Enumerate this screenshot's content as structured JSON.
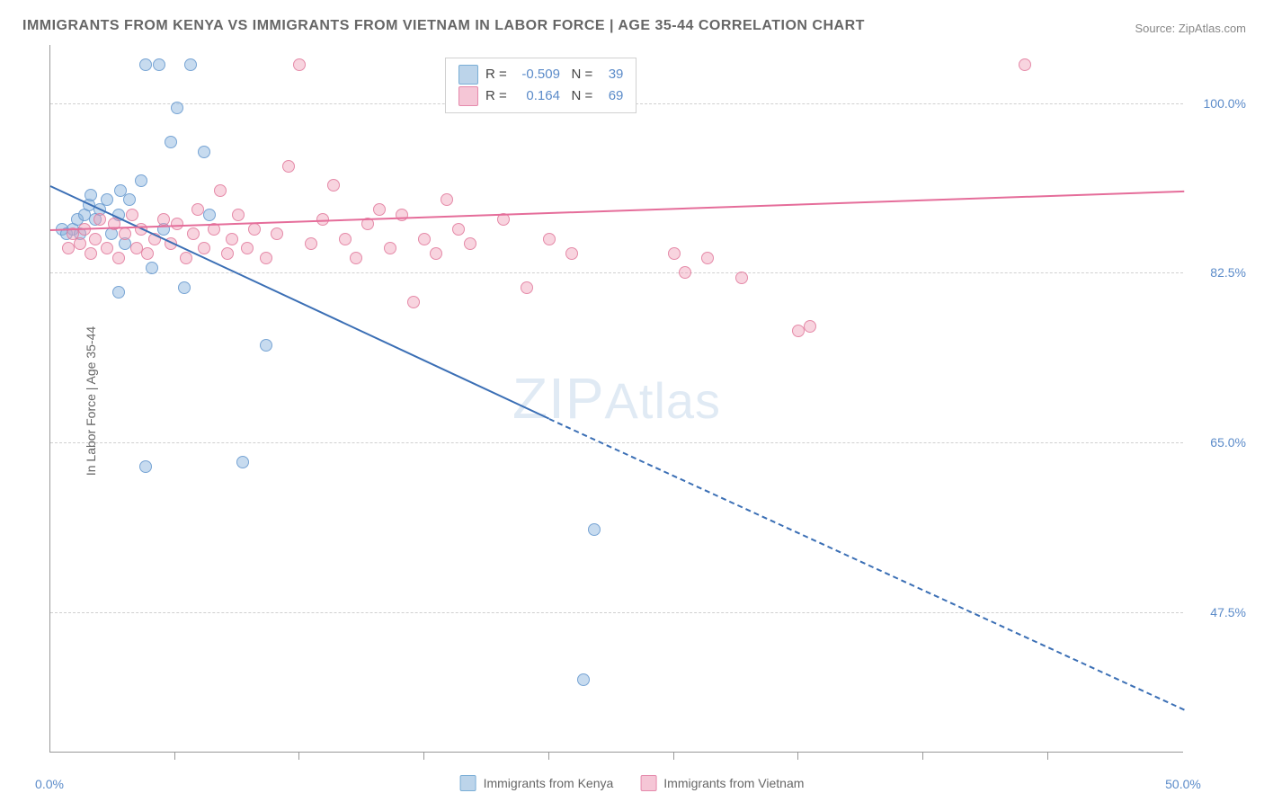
{
  "title": "IMMIGRANTS FROM KENYA VS IMMIGRANTS FROM VIETNAM IN LABOR FORCE | AGE 35-44 CORRELATION CHART",
  "source": "Source: ZipAtlas.com",
  "ylabel": "In Labor Force | Age 35-44",
  "watermark": "ZIPAtlas",
  "chart": {
    "type": "scatter",
    "xlim": [
      0,
      50
    ],
    "ylim": [
      33,
      106
    ],
    "xtick_labels": [
      "0.0%",
      "50.0%"
    ],
    "xtick_positions": [
      0,
      50
    ],
    "xtick_minor": [
      5.5,
      11,
      16.5,
      22,
      27.5,
      33,
      38.5,
      44
    ],
    "ytick_labels": [
      "47.5%",
      "65.0%",
      "82.5%",
      "100.0%"
    ],
    "ytick_positions": [
      47.5,
      65.0,
      82.5,
      100.0
    ],
    "grid_color": "#d0d0d0",
    "background_color": "#ffffff",
    "marker_size": 14,
    "series": [
      {
        "name": "Immigrants from Kenya",
        "short": "kenya",
        "point_fill": "rgba(130,175,220,0.45)",
        "point_stroke": "rgba(100,150,205,0.8)",
        "line_color": "#3b6fb5",
        "r": "-0.509",
        "n": "39",
        "trend": {
          "x1": 0,
          "y1": 91.5,
          "x2": 22,
          "y2": 67.5,
          "x2_dash": 50,
          "y2_dash": 37.5
        },
        "points": [
          [
            0.5,
            87
          ],
          [
            0.7,
            86.5
          ],
          [
            1,
            87
          ],
          [
            1.2,
            88
          ],
          [
            1.3,
            86.5
          ],
          [
            1.5,
            88.5
          ],
          [
            1.7,
            89.5
          ],
          [
            1.8,
            90.5
          ],
          [
            2,
            88
          ],
          [
            2.2,
            89
          ],
          [
            2.5,
            90
          ],
          [
            2.7,
            86.5
          ],
          [
            3,
            88.5
          ],
          [
            3.1,
            91
          ],
          [
            3.3,
            85.5
          ],
          [
            3.5,
            90
          ],
          [
            4,
            92
          ],
          [
            4.2,
            104
          ],
          [
            4.5,
            83
          ],
          [
            4.8,
            104
          ],
          [
            5,
            87
          ],
          [
            5.3,
            96
          ],
          [
            5.6,
            99.5
          ],
          [
            5.9,
            81
          ],
          [
            6.2,
            104
          ],
          [
            6.8,
            95
          ],
          [
            7,
            88.5
          ],
          [
            3,
            80.5
          ],
          [
            4.2,
            62.5
          ],
          [
            8.5,
            63
          ],
          [
            9.5,
            75
          ],
          [
            22,
            104
          ],
          [
            24,
            56
          ],
          [
            23.5,
            40.5
          ]
        ]
      },
      {
        "name": "Immigrants from Vietnam",
        "short": "vietnam",
        "point_fill": "rgba(240,160,185,0.45)",
        "point_stroke": "rgba(225,120,155,0.8)",
        "line_color": "#e56d9a",
        "r": "0.164",
        "n": "69",
        "trend": {
          "x1": 0,
          "y1": 87.0,
          "x2": 50,
          "y2": 91.0
        },
        "points": [
          [
            0.8,
            85
          ],
          [
            1,
            86.5
          ],
          [
            1.3,
            85.5
          ],
          [
            1.5,
            87
          ],
          [
            1.8,
            84.5
          ],
          [
            2,
            86
          ],
          [
            2.2,
            88
          ],
          [
            2.5,
            85
          ],
          [
            2.8,
            87.5
          ],
          [
            3,
            84
          ],
          [
            3.3,
            86.5
          ],
          [
            3.6,
            88.5
          ],
          [
            3.8,
            85
          ],
          [
            4,
            87
          ],
          [
            4.3,
            84.5
          ],
          [
            4.6,
            86
          ],
          [
            5,
            88
          ],
          [
            5.3,
            85.5
          ],
          [
            5.6,
            87.5
          ],
          [
            6,
            84
          ],
          [
            6.3,
            86.5
          ],
          [
            6.5,
            89
          ],
          [
            6.8,
            85
          ],
          [
            7.2,
            87
          ],
          [
            7.5,
            91
          ],
          [
            7.8,
            84.5
          ],
          [
            8,
            86
          ],
          [
            8.3,
            88.5
          ],
          [
            8.7,
            85
          ],
          [
            9,
            87
          ],
          [
            9.5,
            84
          ],
          [
            10,
            86.5
          ],
          [
            10.5,
            93.5
          ],
          [
            11,
            104
          ],
          [
            11.5,
            85.5
          ],
          [
            12,
            88
          ],
          [
            12.5,
            91.5
          ],
          [
            13,
            86
          ],
          [
            13.5,
            84
          ],
          [
            14,
            87.5
          ],
          [
            14.5,
            89
          ],
          [
            15,
            85
          ],
          [
            15.5,
            88.5
          ],
          [
            16,
            79.5
          ],
          [
            16.5,
            86
          ],
          [
            17,
            84.5
          ],
          [
            17.5,
            90
          ],
          [
            18,
            87
          ],
          [
            18.5,
            85.5
          ],
          [
            19,
            100.5
          ],
          [
            20,
            88
          ],
          [
            21,
            81
          ],
          [
            22,
            86
          ],
          [
            23,
            84.5
          ],
          [
            27.5,
            84.5
          ],
          [
            28,
            82.5
          ],
          [
            29,
            84
          ],
          [
            30.5,
            82
          ],
          [
            33,
            76.5
          ],
          [
            33.5,
            77
          ],
          [
            43,
            104
          ]
        ]
      }
    ]
  },
  "legend_top": {
    "r_label": "R =",
    "n_label": "N ="
  },
  "legend_bottom": {
    "items": [
      "Immigrants from Kenya",
      "Immigrants from Vietnam"
    ]
  }
}
